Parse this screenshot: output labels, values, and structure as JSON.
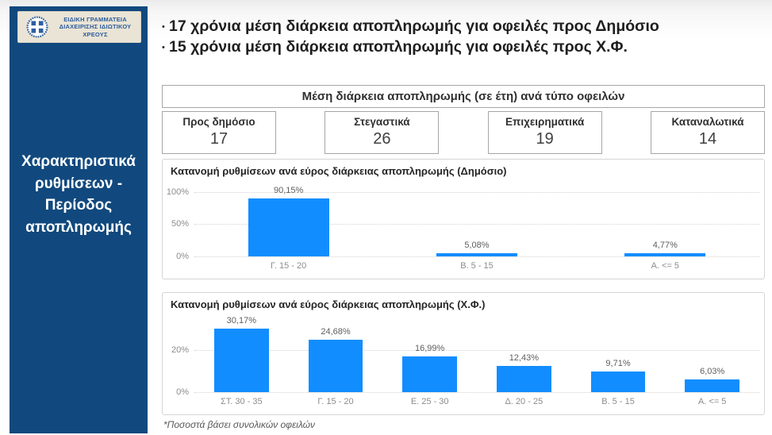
{
  "colors": {
    "bar": "#118DFF",
    "sidebar_bg": "#11497E",
    "logo_bg": "#EAE4D6",
    "logo_text": "#2B5B9B",
    "grid": "#D6D3CE"
  },
  "logo": {
    "lines": [
      "ΕΙΔΙΚΗ ΓΡΑΜΜΑΤΕΙΑ",
      "ΔΙΑΧΕΙΡΙΣΗΣ ΙΔΙΩΤΙΚΟΥ",
      "ΧΡΕΟΥΣ"
    ],
    "emblem": "greece-cross-emblem"
  },
  "sidebar": {
    "title": "Χαρακτηριστικά ρυθμίσεων - Περίοδος αποπληρωμής"
  },
  "key_points": [
    {
      "text": "17 χρόνια μέση διάρκεια αποπληρωμής για οφειλές προς Δημόσιο"
    },
    {
      "text": "15 χρόνια μέση διάρκεια αποπληρωμής για οφειλές προς Χ.Φ."
    }
  ],
  "summary_table": {
    "title": "Μέση διάρκεια αποπληρωμής (σε έτη) ανά τύπο οφειλών",
    "cells": [
      {
        "label": "Προς δημόσιο",
        "value": "17"
      },
      {
        "label": "Στεγαστικά",
        "value": "26"
      },
      {
        "label": "Επιχειρηματικά",
        "value": "19"
      },
      {
        "label": "Καταναλωτικά",
        "value": "14"
      }
    ]
  },
  "chart_data": [
    {
      "type": "bar",
      "title": "Κατανομή ρυθμίσεων ανά εύρος διάρκειας αποπληρωμής (Δημόσιο)",
      "categories": [
        "Γ. 15 - 20",
        "Β. 5 - 15",
        "Α. <= 5"
      ],
      "values": [
        90.15,
        5.08,
        4.77
      ],
      "labels": [
        "90,15%",
        "5,08%",
        "4,77%"
      ],
      "yticks": [
        {
          "value": 0,
          "label": "0%"
        },
        {
          "value": 50,
          "label": "50%"
        },
        {
          "value": 100,
          "label": "100%"
        }
      ],
      "ylim": [
        0,
        106
      ],
      "grid": "dotted",
      "legend": "none"
    },
    {
      "type": "bar",
      "title": "Κατανομή ρυθμίσεων ανά εύρος διάρκειας αποπληρωμής (Χ.Φ.)",
      "categories": [
        "ΣΤ. 30 - 35",
        "Γ. 15 - 20",
        "Ε. 25 - 30",
        "Δ. 20 - 25",
        "Β. 5 - 15",
        "Α. <= 5"
      ],
      "values": [
        30.17,
        24.68,
        16.99,
        12.43,
        9.71,
        6.03
      ],
      "labels": [
        "30,17%",
        "24,68%",
        "16,99%",
        "12,43%",
        "9,71%",
        "6,03%"
      ],
      "yticks": [
        {
          "value": 0,
          "label": "0%"
        },
        {
          "value": 20,
          "label": "20%"
        }
      ],
      "ylim": [
        0,
        32
      ],
      "grid": "dotted",
      "legend": "none"
    }
  ],
  "footnote": "*Ποσοστά βάσει συνολικών οφειλών"
}
